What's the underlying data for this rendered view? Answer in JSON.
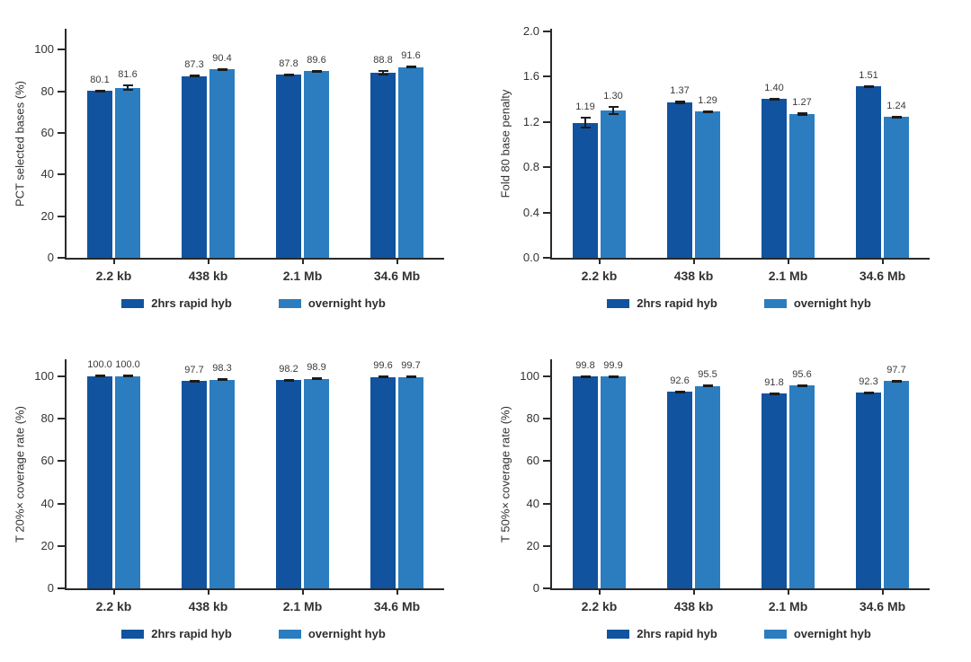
{
  "page": {
    "background": "#ffffff"
  },
  "colors": {
    "series_dark": "#11539e",
    "series_light": "#2b7dc0",
    "axis": "#2a2a2a",
    "text": "#333333",
    "error_bar": "#1b1b1b"
  },
  "chart_data": [
    {
      "id": "pct-selected-bases",
      "type": "bar",
      "title": "",
      "xlabel": "",
      "ylabel": "PCT selected bases (%)",
      "categories": [
        "2.2 kb",
        "438 kb",
        "2.1 Mb",
        "34.6 Mb"
      ],
      "ylim": [
        0,
        110
      ],
      "ytick_values": [
        0,
        20,
        40,
        60,
        80,
        100
      ],
      "ytick_labels": [
        "0",
        "20",
        "40",
        "60",
        "80",
        "100"
      ],
      "grid": false,
      "legend_position": "bottom",
      "series": [
        {
          "name": "2hrs rapid hyb",
          "color": "#11539e",
          "values": [
            80.1,
            87.3,
            87.8,
            88.8
          ],
          "labels": [
            "80.1",
            "87.3",
            "87.8",
            "88.8"
          ],
          "errors": [
            0.5,
            0.5,
            0.6,
            1.3
          ]
        },
        {
          "name": "overnight hyb",
          "color": "#2b7dc0",
          "values": [
            81.6,
            90.4,
            89.6,
            91.6
          ],
          "labels": [
            "81.6",
            "90.4",
            "89.6",
            "91.6"
          ],
          "errors": [
            1.5,
            0.5,
            0.4,
            0.4
          ]
        }
      ]
    },
    {
      "id": "fold-80-base-penalty",
      "type": "bar",
      "title": "",
      "xlabel": "",
      "ylabel": "Fold 80 base penalty",
      "categories": [
        "2.2 kb",
        "438 kb",
        "2.1 Mb",
        "34.6 Mb"
      ],
      "ylim": [
        0,
        2.02
      ],
      "ytick_values": [
        0,
        0.4,
        0.8,
        1.2,
        1.6,
        2.0
      ],
      "ytick_labels": [
        "0.0",
        "0.4",
        "0.8",
        "1.2",
        "1.6",
        "2.0"
      ],
      "grid": false,
      "legend_position": "bottom",
      "series": [
        {
          "name": "2hrs rapid hyb",
          "color": "#11539e",
          "values": [
            1.19,
            1.37,
            1.4,
            1.51
          ],
          "labels": [
            "1.19",
            "1.37",
            "1.40",
            "1.51"
          ],
          "errors": [
            0.05,
            0.015,
            0.01,
            0.01
          ]
        },
        {
          "name": "overnight hyb",
          "color": "#2b7dc0",
          "values": [
            1.3,
            1.29,
            1.27,
            1.24
          ],
          "labels": [
            "1.30",
            "1.29",
            "1.27",
            "1.24"
          ],
          "errors": [
            0.04,
            0.01,
            0.015,
            0.015
          ]
        }
      ]
    },
    {
      "id": "t20x-coverage-rate",
      "type": "bar",
      "title": "",
      "xlabel": "",
      "ylabel": "T 20%× coverage rate (%)",
      "categories": [
        "2.2 kb",
        "438 kb",
        "2.1 Mb",
        "34.6 Mb"
      ],
      "ylim": [
        0,
        108
      ],
      "ytick_values": [
        0,
        20,
        40,
        60,
        80,
        100
      ],
      "ytick_labels": [
        "0",
        "20",
        "40",
        "60",
        "80",
        "100"
      ],
      "grid": false,
      "legend_position": "bottom",
      "series": [
        {
          "name": "2hrs rapid hyb",
          "color": "#11539e",
          "values": [
            100.0,
            97.7,
            98.2,
            99.6
          ],
          "labels": [
            "100.0",
            "97.7",
            "98.2",
            "99.6"
          ],
          "errors": [
            0.1,
            0.4,
            0.5,
            0.2
          ]
        },
        {
          "name": "overnight hyb",
          "color": "#2b7dc0",
          "values": [
            100.0,
            98.3,
            98.9,
            99.7
          ],
          "labels": [
            "100.0",
            "98.3",
            "98.9",
            "99.7"
          ],
          "errors": [
            0.1,
            0.3,
            0.4,
            0.3
          ]
        }
      ]
    },
    {
      "id": "t50x-coverage-rate",
      "type": "bar",
      "title": "",
      "xlabel": "",
      "ylabel": "T 50%× coverage rate (%)",
      "categories": [
        "2.2 kb",
        "438 kb",
        "2.1 Mb",
        "34.6 Mb"
      ],
      "ylim": [
        0,
        108
      ],
      "ytick_values": [
        0,
        20,
        40,
        60,
        80,
        100
      ],
      "ytick_labels": [
        "0",
        "20",
        "40",
        "60",
        "80",
        "100"
      ],
      "grid": false,
      "legend_position": "bottom",
      "series": [
        {
          "name": "2hrs rapid hyb",
          "color": "#11539e",
          "values": [
            99.8,
            92.6,
            91.8,
            92.3
          ],
          "labels": [
            "99.8",
            "92.6",
            "91.8",
            "92.3"
          ],
          "errors": [
            0.1,
            0.4,
            0.4,
            0.5
          ]
        },
        {
          "name": "overnight hyb",
          "color": "#2b7dc0",
          "values": [
            99.9,
            95.5,
            95.6,
            97.7
          ],
          "labels": [
            "99.9",
            "95.5",
            "95.6",
            "97.7"
          ],
          "errors": [
            0.1,
            0.5,
            0.6,
            0.6
          ]
        }
      ]
    }
  ]
}
